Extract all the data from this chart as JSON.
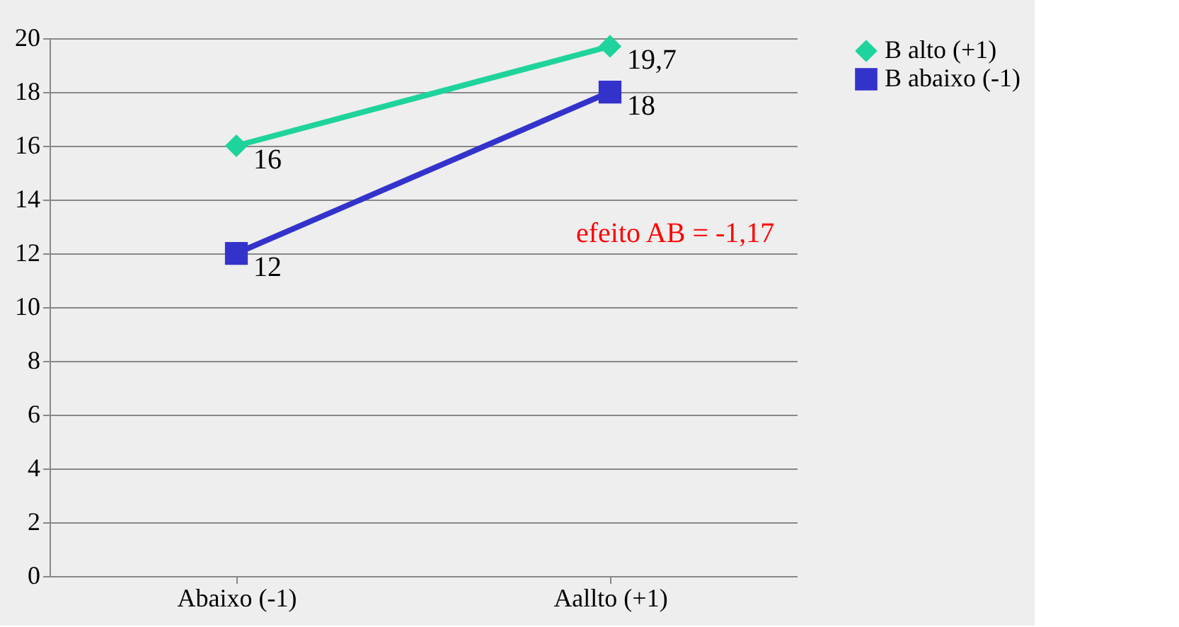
{
  "chart_data": {
    "type": "line",
    "categories": [
      "Abaixo (-1)",
      "Aallto (+1)"
    ],
    "series": [
      {
        "name": "B alto (+1)",
        "color": "#1fd39c",
        "values": [
          16,
          19.7
        ],
        "value_labels": [
          "16",
          "19,7"
        ],
        "marker": "diamond"
      },
      {
        "name": "B abaixo (-1)",
        "color": "#3333cc",
        "values": [
          12,
          18
        ],
        "value_labels": [
          "12",
          "18"
        ],
        "marker": "square"
      }
    ],
    "ylim": [
      0,
      20
    ],
    "yticks": [
      0,
      2,
      4,
      6,
      8,
      10,
      12,
      14,
      16,
      18,
      20
    ],
    "grid": "y",
    "legend": "right",
    "line_style": "solid",
    "annotations": [
      "efeito AB = -1,17"
    ]
  }
}
